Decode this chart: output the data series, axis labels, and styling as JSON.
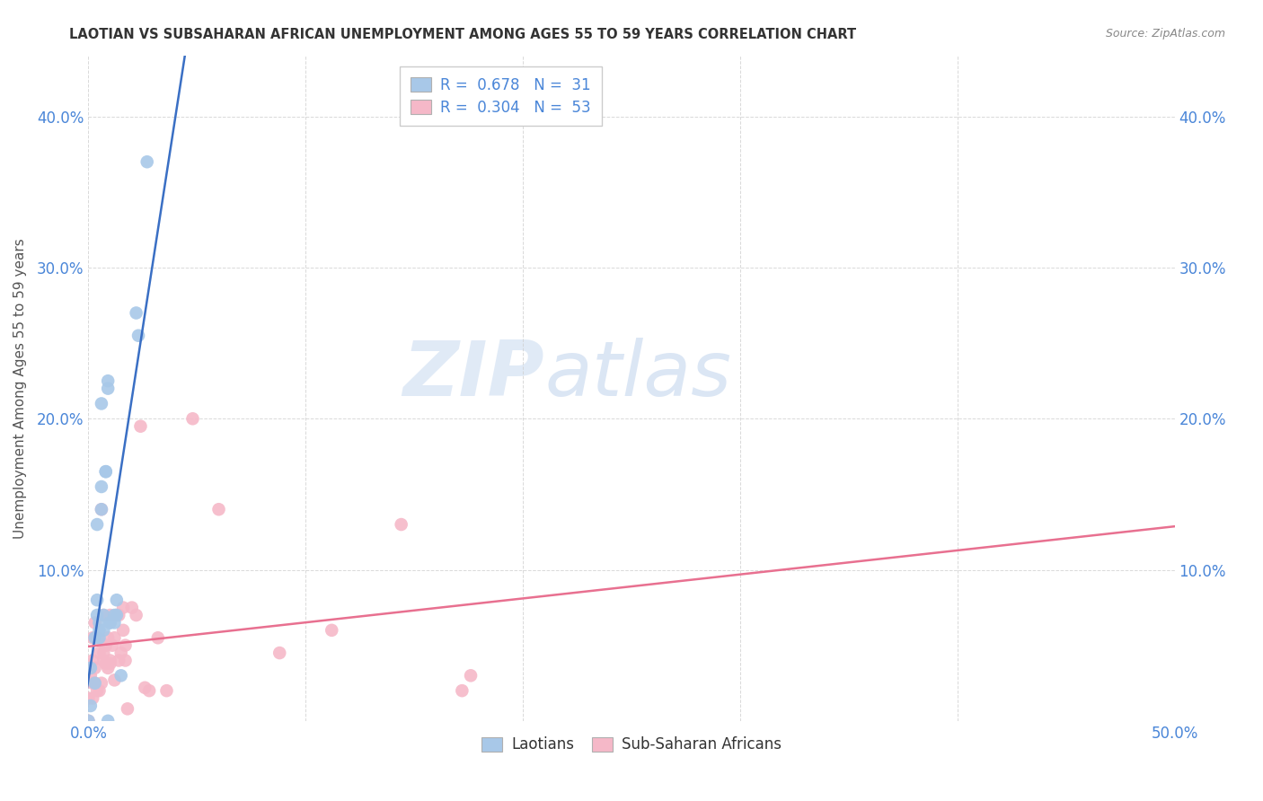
{
  "title": "LAOTIAN VS SUBSAHARAN AFRICAN UNEMPLOYMENT AMONG AGES 55 TO 59 YEARS CORRELATION CHART",
  "source": "Source: ZipAtlas.com",
  "ylabel": "Unemployment Among Ages 55 to 59 years",
  "xlim": [
    0.0,
    0.5
  ],
  "ylim": [
    0.0,
    0.44
  ],
  "xticks": [
    0.0,
    0.1,
    0.2,
    0.3,
    0.4,
    0.5
  ],
  "yticks": [
    0.0,
    0.1,
    0.2,
    0.3,
    0.4
  ],
  "xtick_labels_bottom": [
    "0.0%",
    "",
    "",
    "",
    "",
    "50.0%"
  ],
  "ytick_labels_left": [
    "",
    "10.0%",
    "20.0%",
    "30.0%",
    "40.0%"
  ],
  "ytick_labels_right": [
    "",
    "10.0%",
    "20.0%",
    "30.0%",
    "40.0%"
  ],
  "legend_r1": "0.678",
  "legend_n1": "31",
  "legend_r2": "0.304",
  "legend_n2": "53",
  "watermark_zip": "ZIP",
  "watermark_atlas": "atlas",
  "laotian_color": "#a8c8e8",
  "subsaharan_color": "#f5b8c8",
  "laotian_line_color": "#3a6fc4",
  "subsaharan_line_color": "#e87090",
  "laotian_x": [
    0.0,
    0.001,
    0.001,
    0.003,
    0.003,
    0.004,
    0.004,
    0.004,
    0.005,
    0.005,
    0.005,
    0.006,
    0.006,
    0.006,
    0.007,
    0.007,
    0.008,
    0.008,
    0.009,
    0.009,
    0.009,
    0.01,
    0.01,
    0.012,
    0.012,
    0.013,
    0.013,
    0.015,
    0.022,
    0.023,
    0.027
  ],
  "laotian_y": [
    0.0,
    0.01,
    0.035,
    0.025,
    0.055,
    0.07,
    0.08,
    0.13,
    0.055,
    0.065,
    0.06,
    0.155,
    0.14,
    0.21,
    0.06,
    0.07,
    0.165,
    0.165,
    0.0,
    0.225,
    0.22,
    0.065,
    0.065,
    0.065,
    0.07,
    0.08,
    0.07,
    0.03,
    0.27,
    0.255,
    0.37
  ],
  "subsaharan_x": [
    0.0,
    0.0,
    0.001,
    0.002,
    0.002,
    0.002,
    0.002,
    0.003,
    0.003,
    0.003,
    0.004,
    0.004,
    0.004,
    0.005,
    0.005,
    0.006,
    0.006,
    0.007,
    0.007,
    0.007,
    0.008,
    0.008,
    0.009,
    0.009,
    0.01,
    0.01,
    0.01,
    0.011,
    0.012,
    0.012,
    0.013,
    0.014,
    0.014,
    0.015,
    0.016,
    0.016,
    0.017,
    0.017,
    0.018,
    0.02,
    0.022,
    0.024,
    0.026,
    0.028,
    0.032,
    0.036,
    0.048,
    0.06,
    0.088,
    0.112,
    0.144,
    0.172,
    0.176
  ],
  "subsaharan_y": [
    0.0,
    0.015,
    0.03,
    0.015,
    0.025,
    0.04,
    0.055,
    0.025,
    0.035,
    0.065,
    0.055,
    0.02,
    0.055,
    0.045,
    0.02,
    0.025,
    0.14,
    0.04,
    0.045,
    0.07,
    0.038,
    0.05,
    0.055,
    0.035,
    0.038,
    0.04,
    0.07,
    0.05,
    0.027,
    0.055,
    0.07,
    0.04,
    0.07,
    0.045,
    0.06,
    0.075,
    0.04,
    0.05,
    0.008,
    0.075,
    0.07,
    0.195,
    0.022,
    0.02,
    0.055,
    0.02,
    0.2,
    0.14,
    0.045,
    0.06,
    0.13,
    0.02,
    0.03
  ],
  "background_color": "#ffffff",
  "grid_color": "#d0d0d0",
  "tick_color": "#4a86d8",
  "title_color": "#333333",
  "ylabel_color": "#555555"
}
